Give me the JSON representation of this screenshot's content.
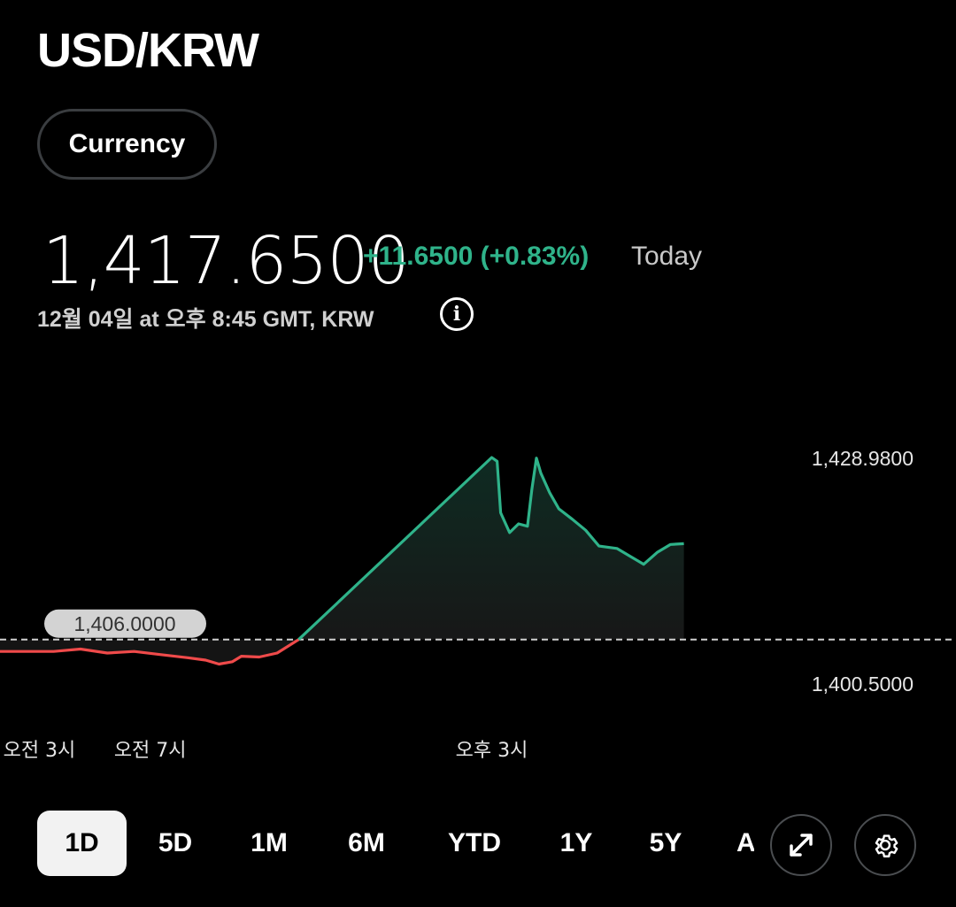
{
  "header": {
    "title": "USD/KRW",
    "category_chip": "Currency",
    "price": "1,417.6500",
    "change": "+11.6500 (+0.83%)",
    "change_period": "Today",
    "timestamp": "12월 04일 at 오후 8:45 GMT, KRW",
    "colors": {
      "up": "#2fb38a",
      "down": "#ef4a4a"
    }
  },
  "range_tabs": [
    "1D",
    "5D",
    "1M",
    "6M",
    "YTD",
    "1Y",
    "5Y",
    "A"
  ],
  "active_range": "1D",
  "icons": [
    "info-icon",
    "expand-icon",
    "gear-icon"
  ],
  "chart_data": {
    "type": "line",
    "title": "",
    "xlabel": "",
    "ylabel": "",
    "x_tick_labels": [
      "오전 3시",
      "오전 7시",
      "오후 3시"
    ],
    "y_tick_labels": [
      "1,428.9800",
      "1,400.5000"
    ],
    "ylim": [
      1400.5,
      1428.98
    ],
    "reference_line": {
      "value": 1406.0,
      "label": "1,406.0000",
      "style": "dashed"
    },
    "series": [
      {
        "points": [
          [
            0.0,
            1404.5
          ],
          [
            0.06,
            1404.5
          ],
          [
            0.09,
            1404.8
          ],
          [
            0.12,
            1404.3
          ],
          [
            0.15,
            1404.5
          ],
          [
            0.18,
            1404.1
          ],
          [
            0.21,
            1403.7
          ],
          [
            0.23,
            1403.4
          ],
          [
            0.245,
            1402.9
          ],
          [
            0.26,
            1403.2
          ],
          [
            0.27,
            1403.9
          ],
          [
            0.29,
            1403.8
          ],
          [
            0.31,
            1404.3
          ],
          [
            0.334,
            1406.0
          ],
          [
            0.55,
            1428.98
          ],
          [
            0.556,
            1428.5
          ],
          [
            0.56,
            1422.0
          ],
          [
            0.57,
            1419.5
          ],
          [
            0.58,
            1420.6
          ],
          [
            0.59,
            1420.3
          ],
          [
            0.595,
            1425.0
          ],
          [
            0.6,
            1428.9
          ],
          [
            0.605,
            1427.0
          ],
          [
            0.615,
            1424.5
          ],
          [
            0.625,
            1422.5
          ],
          [
            0.64,
            1421.2
          ],
          [
            0.655,
            1419.8
          ],
          [
            0.67,
            1417.8
          ],
          [
            0.69,
            1417.5
          ],
          [
            0.705,
            1416.5
          ],
          [
            0.72,
            1415.5
          ],
          [
            0.735,
            1417.0
          ],
          [
            0.75,
            1418.0
          ],
          [
            0.765,
            1418.1
          ]
        ]
      }
    ],
    "grid": false,
    "legend": "none"
  }
}
